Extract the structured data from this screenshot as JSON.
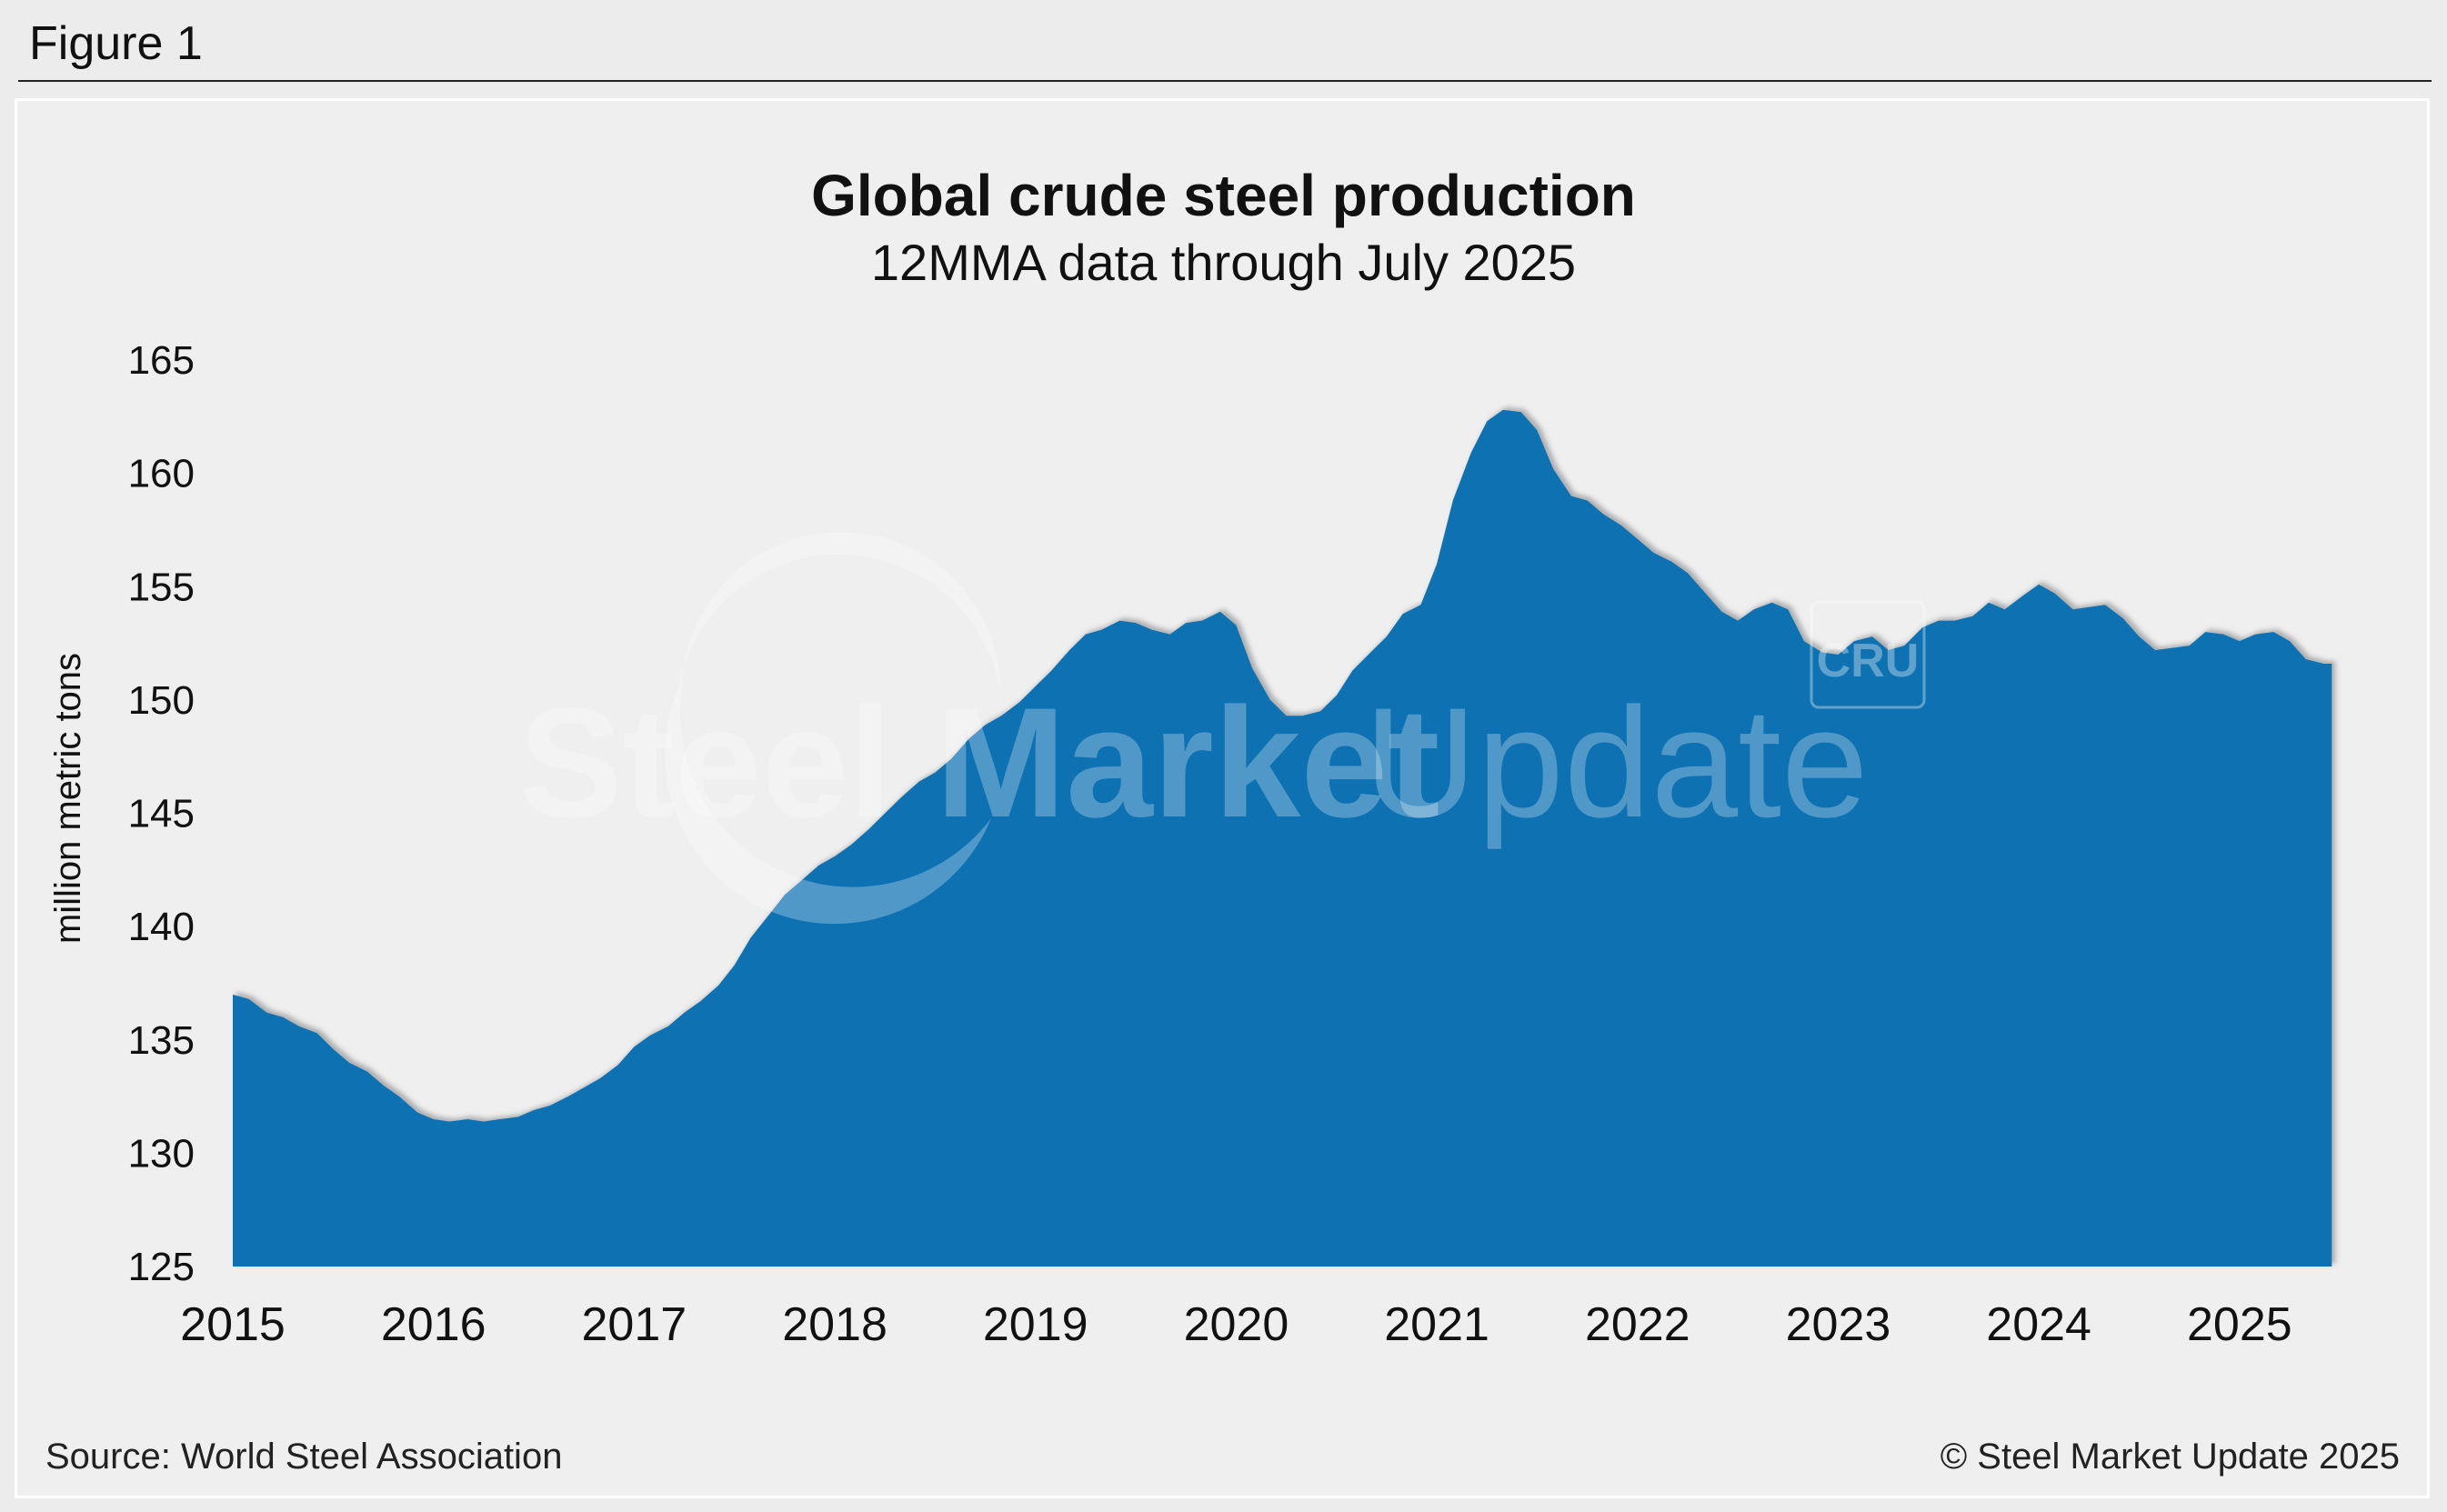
{
  "figure_label": "Figure 1",
  "source": "Source: World Steel Association",
  "copyright": "© Steel Market Update 2025",
  "watermark": {
    "brand_bold": "Steel Market",
    "brand_light": "Update",
    "logo_text": "CRU"
  },
  "colors": {
    "area_fill": "#1071b2",
    "background": "#efefef",
    "text": "#111111"
  },
  "chart_data": {
    "type": "area",
    "title": "Global crude steel production",
    "subtitle": "12MMA data through July 2025",
    "ylabel": "million metric tons",
    "xlabel": "",
    "ylim": [
      125,
      165
    ],
    "xlim": [
      2015.0,
      2025.54
    ],
    "yticks": [
      125,
      130,
      135,
      140,
      145,
      150,
      155,
      160,
      165
    ],
    "xticks": [
      "2015",
      "2016",
      "2017",
      "2018",
      "2019",
      "2020",
      "2021",
      "2022",
      "2023",
      "2024",
      "2025"
    ],
    "grid": false,
    "legend": "none",
    "series": [
      {
        "name": "Global crude steel production 12MMA",
        "points": [
          [
            2015.0,
            137.0
          ],
          [
            2015.08,
            136.8
          ],
          [
            2015.17,
            136.2
          ],
          [
            2015.25,
            136.0
          ],
          [
            2015.33,
            135.6
          ],
          [
            2015.42,
            135.3
          ],
          [
            2015.5,
            134.6
          ],
          [
            2015.58,
            134.0
          ],
          [
            2015.67,
            133.6
          ],
          [
            2015.75,
            133.0
          ],
          [
            2015.83,
            132.5
          ],
          [
            2015.92,
            131.8
          ],
          [
            2016.0,
            131.5
          ],
          [
            2016.08,
            131.4
          ],
          [
            2016.17,
            131.5
          ],
          [
            2016.25,
            131.4
          ],
          [
            2016.33,
            131.5
          ],
          [
            2016.42,
            131.6
          ],
          [
            2016.5,
            131.9
          ],
          [
            2016.58,
            132.1
          ],
          [
            2016.67,
            132.5
          ],
          [
            2016.75,
            132.9
          ],
          [
            2016.83,
            133.3
          ],
          [
            2016.92,
            133.9
          ],
          [
            2017.0,
            134.7
          ],
          [
            2017.08,
            135.2
          ],
          [
            2017.17,
            135.6
          ],
          [
            2017.25,
            136.2
          ],
          [
            2017.33,
            136.7
          ],
          [
            2017.42,
            137.4
          ],
          [
            2017.5,
            138.3
          ],
          [
            2017.58,
            139.5
          ],
          [
            2017.67,
            140.5
          ],
          [
            2017.75,
            141.4
          ],
          [
            2017.83,
            142.0
          ],
          [
            2017.92,
            142.7
          ],
          [
            2018.0,
            143.1
          ],
          [
            2018.08,
            143.6
          ],
          [
            2018.17,
            144.3
          ],
          [
            2018.25,
            145.0
          ],
          [
            2018.33,
            145.7
          ],
          [
            2018.42,
            146.4
          ],
          [
            2018.5,
            146.8
          ],
          [
            2018.58,
            147.4
          ],
          [
            2018.67,
            148.3
          ],
          [
            2018.75,
            148.9
          ],
          [
            2018.83,
            149.3
          ],
          [
            2018.92,
            149.9
          ],
          [
            2019.0,
            150.6
          ],
          [
            2019.08,
            151.3
          ],
          [
            2019.17,
            152.2
          ],
          [
            2019.25,
            152.9
          ],
          [
            2019.33,
            153.1
          ],
          [
            2019.42,
            153.5
          ],
          [
            2019.5,
            153.4
          ],
          [
            2019.58,
            153.1
          ],
          [
            2019.67,
            152.9
          ],
          [
            2019.75,
            153.4
          ],
          [
            2019.83,
            153.5
          ],
          [
            2019.92,
            153.9
          ],
          [
            2020.0,
            153.3
          ],
          [
            2020.08,
            151.4
          ],
          [
            2020.17,
            150.0
          ],
          [
            2020.25,
            149.3
          ],
          [
            2020.33,
            149.3
          ],
          [
            2020.42,
            149.5
          ],
          [
            2020.5,
            150.2
          ],
          [
            2020.58,
            151.3
          ],
          [
            2020.67,
            152.1
          ],
          [
            2020.75,
            152.8
          ],
          [
            2020.83,
            153.8
          ],
          [
            2020.92,
            154.2
          ],
          [
            2021.0,
            156.0
          ],
          [
            2021.08,
            158.8
          ],
          [
            2021.17,
            160.9
          ],
          [
            2021.25,
            162.3
          ],
          [
            2021.33,
            162.8
          ],
          [
            2021.42,
            162.7
          ],
          [
            2021.5,
            161.9
          ],
          [
            2021.58,
            160.2
          ],
          [
            2021.67,
            159.0
          ],
          [
            2021.75,
            158.8
          ],
          [
            2021.83,
            158.2
          ],
          [
            2021.92,
            157.7
          ],
          [
            2022.0,
            157.1
          ],
          [
            2022.08,
            156.5
          ],
          [
            2022.17,
            156.1
          ],
          [
            2022.25,
            155.6
          ],
          [
            2022.33,
            154.8
          ],
          [
            2022.42,
            153.9
          ],
          [
            2022.5,
            153.5
          ],
          [
            2022.58,
            154.0
          ],
          [
            2022.67,
            154.3
          ],
          [
            2022.75,
            154.0
          ],
          [
            2022.83,
            152.6
          ],
          [
            2022.92,
            152.1
          ],
          [
            2023.0,
            152.0
          ],
          [
            2023.08,
            152.6
          ],
          [
            2023.17,
            152.8
          ],
          [
            2023.25,
            152.2
          ],
          [
            2023.33,
            152.4
          ],
          [
            2023.42,
            153.2
          ],
          [
            2023.5,
            153.5
          ],
          [
            2023.58,
            153.5
          ],
          [
            2023.67,
            153.7
          ],
          [
            2023.75,
            154.3
          ],
          [
            2023.83,
            154.0
          ],
          [
            2023.92,
            154.6
          ],
          [
            2024.0,
            155.1
          ],
          [
            2024.08,
            154.7
          ],
          [
            2024.17,
            154.0
          ],
          [
            2024.25,
            154.1
          ],
          [
            2024.33,
            154.2
          ],
          [
            2024.42,
            153.6
          ],
          [
            2024.5,
            152.8
          ],
          [
            2024.58,
            152.2
          ],
          [
            2024.67,
            152.3
          ],
          [
            2024.75,
            152.4
          ],
          [
            2024.83,
            153.0
          ],
          [
            2024.92,
            152.9
          ],
          [
            2025.0,
            152.6
          ],
          [
            2025.08,
            152.9
          ],
          [
            2025.17,
            153.0
          ],
          [
            2025.25,
            152.6
          ],
          [
            2025.33,
            151.8
          ],
          [
            2025.42,
            151.6
          ],
          [
            2025.46,
            151.6
          ]
        ]
      }
    ]
  }
}
